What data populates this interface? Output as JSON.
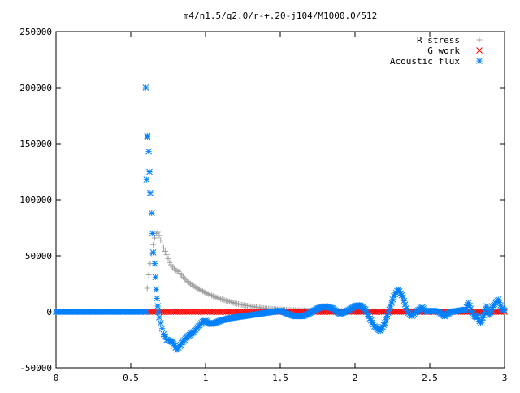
{
  "chart_data": {
    "type": "scatter",
    "title": "m4/n1.5/q2.0/r-+.20-j104/M1000.0/512",
    "xlabel": "",
    "ylabel": "",
    "xlim": [
      0,
      3
    ],
    "ylim": [
      -50000,
      250000
    ],
    "x_ticks": [
      "0",
      "0.5",
      "1",
      "1.5",
      "2",
      "2.5",
      "3"
    ],
    "y_ticks": [
      "-50000",
      "0",
      "50000",
      "100000",
      "150000",
      "200000",
      "250000"
    ],
    "grid": false,
    "legend_position": "top-right",
    "series": [
      {
        "name": "R stress",
        "marker": "plus",
        "color": "#a0a0a0",
        "points": [
          [
            0.6,
            0
          ],
          [
            0.61,
            21000
          ],
          [
            0.62,
            33000
          ],
          [
            0.63,
            43000
          ],
          [
            0.64,
            52000
          ],
          [
            0.65,
            60000
          ],
          [
            0.66,
            66000
          ],
          [
            0.67,
            70000
          ],
          [
            0.68,
            71000
          ],
          [
            0.69,
            68000
          ],
          [
            0.7,
            64000
          ],
          [
            0.72,
            57000
          ],
          [
            0.74,
            51000
          ],
          [
            0.76,
            44000
          ],
          [
            0.78,
            40000
          ],
          [
            0.8,
            37000
          ],
          [
            0.82,
            36000
          ],
          [
            0.85,
            31000
          ],
          [
            0.88,
            27000
          ],
          [
            0.92,
            23000
          ],
          [
            0.96,
            20000
          ],
          [
            1.0,
            17000
          ],
          [
            1.05,
            14000
          ],
          [
            1.1,
            11500
          ],
          [
            1.15,
            9500
          ],
          [
            1.2,
            7500
          ],
          [
            1.25,
            6000
          ],
          [
            1.3,
            5000
          ],
          [
            1.35,
            4000
          ],
          [
            1.4,
            3000
          ],
          [
            1.45,
            2500
          ],
          [
            1.5,
            2000
          ],
          [
            1.6,
            1500
          ],
          [
            1.7,
            1000
          ],
          [
            1.8,
            800
          ],
          [
            1.9,
            600
          ],
          [
            2.0,
            500
          ],
          [
            2.2,
            400
          ],
          [
            2.4,
            300
          ],
          [
            2.6,
            200
          ],
          [
            2.8,
            150
          ],
          [
            3.0,
            100
          ]
        ]
      },
      {
        "name": "G work",
        "marker": "cross",
        "color": "#ff0000",
        "x_range": [
          0.6,
          3.0
        ],
        "y_value": 0
      },
      {
        "name": "Acoustic flux",
        "marker": "star",
        "color": "#0080ff",
        "baseline": {
          "x_range": [
            0,
            0.6
          ],
          "y_value": 0
        },
        "points": [
          [
            0.6,
            200000
          ],
          [
            0.605,
            118000
          ],
          [
            0.61,
            157000
          ],
          [
            0.612,
            156000
          ],
          [
            0.62,
            143000
          ],
          [
            0.625,
            125000
          ],
          [
            0.63,
            106000
          ],
          [
            0.64,
            88000
          ],
          [
            0.645,
            70000
          ],
          [
            0.65,
            53000
          ],
          [
            0.66,
            43000
          ],
          [
            0.665,
            31000
          ],
          [
            0.67,
            20000
          ],
          [
            0.675,
            12000
          ],
          [
            0.68,
            5000
          ],
          [
            0.685,
            0
          ],
          [
            0.69,
            -5000
          ],
          [
            0.7,
            -10000
          ],
          [
            0.71,
            -15000
          ],
          [
            0.72,
            -20000
          ],
          [
            0.73,
            -22000
          ],
          [
            0.74,
            -25000
          ],
          [
            0.75,
            -25000
          ],
          [
            0.76,
            -26000
          ],
          [
            0.78,
            -27000
          ],
          [
            0.8,
            -32000
          ],
          [
            0.81,
            -34000
          ],
          [
            0.82,
            -32000
          ],
          [
            0.84,
            -28000
          ],
          [
            0.86,
            -25000
          ],
          [
            0.88,
            -22000
          ],
          [
            0.9,
            -20000
          ],
          [
            0.92,
            -18000
          ],
          [
            0.94,
            -15000
          ],
          [
            0.96,
            -12000
          ],
          [
            0.98,
            -9000
          ],
          [
            1.0,
            -8000
          ],
          [
            1.02,
            -10000
          ],
          [
            1.04,
            -11000
          ],
          [
            1.06,
            -10000
          ],
          [
            1.08,
            -9000
          ],
          [
            1.1,
            -8000
          ],
          [
            1.15,
            -6000
          ],
          [
            1.2,
            -5000
          ],
          [
            1.25,
            -4000
          ],
          [
            1.3,
            -3000
          ],
          [
            1.35,
            -2000
          ],
          [
            1.4,
            -1000
          ],
          [
            1.45,
            0
          ],
          [
            1.5,
            1000
          ],
          [
            1.52,
            0
          ],
          [
            1.55,
            -2000
          ],
          [
            1.6,
            -4000
          ],
          [
            1.65,
            -4000
          ],
          [
            1.7,
            -1000
          ],
          [
            1.75,
            3000
          ],
          [
            1.8,
            5000
          ],
          [
            1.85,
            3000
          ],
          [
            1.9,
            -2000
          ],
          [
            1.95,
            1000
          ],
          [
            2.0,
            5000
          ],
          [
            2.03,
            6000
          ],
          [
            2.07,
            2000
          ],
          [
            2.1,
            -6000
          ],
          [
            2.13,
            -13000
          ],
          [
            2.17,
            -17000
          ],
          [
            2.2,
            -10000
          ],
          [
            2.23,
            2000
          ],
          [
            2.26,
            14000
          ],
          [
            2.29,
            20000
          ],
          [
            2.32,
            13000
          ],
          [
            2.35,
            0
          ],
          [
            2.38,
            -4000
          ],
          [
            2.41,
            0
          ],
          [
            2.45,
            4000
          ],
          [
            2.48,
            0
          ],
          [
            2.52,
            1000
          ],
          [
            2.56,
            0
          ],
          [
            2.6,
            -4000
          ],
          [
            2.64,
            0
          ],
          [
            2.7,
            1000
          ],
          [
            2.74,
            2000
          ],
          [
            2.76,
            8000
          ],
          [
            2.78,
            0
          ],
          [
            2.8,
            -4000
          ],
          [
            2.82,
            -5000
          ],
          [
            2.84,
            -10000
          ],
          [
            2.86,
            -3000
          ],
          [
            2.88,
            5000
          ],
          [
            2.9,
            -3000
          ],
          [
            2.92,
            4000
          ],
          [
            2.94,
            8000
          ],
          [
            2.96,
            11000
          ],
          [
            2.98,
            3000
          ],
          [
            3.0,
            1000
          ]
        ]
      }
    ]
  }
}
